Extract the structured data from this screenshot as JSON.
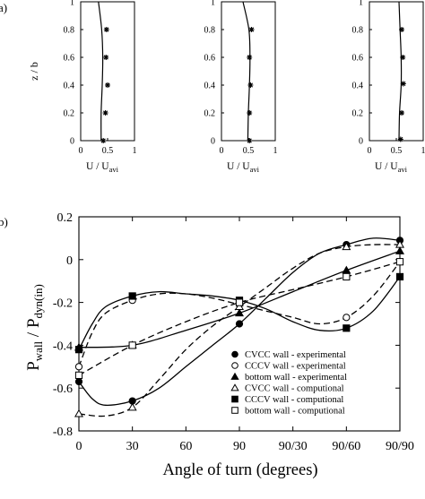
{
  "panels": {
    "a_label": "a)",
    "b_label": "b)"
  },
  "chart_data": [
    {
      "type": "line",
      "panel": "a-1",
      "xlabel": "U / U",
      "xlabel_sub": "avi",
      "ylabel": "z / b",
      "xlim": [
        0,
        1
      ],
      "ylim": [
        0,
        1
      ],
      "xticks": [
        "0",
        "0.5",
        "1"
      ],
      "yticks": [
        "0",
        "0.2",
        "0.4",
        "0.6",
        "0.8",
        "1"
      ],
      "grid": false,
      "points": [
        {
          "x": 0.42,
          "y": 0.0
        },
        {
          "x": 0.46,
          "y": 0.2
        },
        {
          "x": 0.5,
          "y": 0.4
        },
        {
          "x": 0.47,
          "y": 0.6
        },
        {
          "x": 0.48,
          "y": 0.8
        }
      ],
      "curve": [
        {
          "x": 0.38,
          "y": 0.0
        },
        {
          "x": 0.38,
          "y": 0.2
        },
        {
          "x": 0.4,
          "y": 0.4
        },
        {
          "x": 0.41,
          "y": 0.6
        },
        {
          "x": 0.39,
          "y": 0.8
        },
        {
          "x": 0.33,
          "y": 1.0
        }
      ]
    },
    {
      "type": "line",
      "panel": "a-2",
      "xlabel": "U / U",
      "xlabel_sub": "avi",
      "ylabel": "",
      "xlim": [
        0,
        1
      ],
      "ylim": [
        0,
        1
      ],
      "xticks": [
        "0",
        "0.5",
        "1"
      ],
      "yticks": [
        "0",
        "0.2",
        "0.4",
        "0.6",
        "0.8",
        "1"
      ],
      "grid": false,
      "points": [
        {
          "x": 0.52,
          "y": 0.0
        },
        {
          "x": 0.52,
          "y": 0.2
        },
        {
          "x": 0.54,
          "y": 0.4
        },
        {
          "x": 0.52,
          "y": 0.6
        },
        {
          "x": 0.56,
          "y": 0.8
        }
      ],
      "curve": [
        {
          "x": 0.49,
          "y": 0.0
        },
        {
          "x": 0.5,
          "y": 0.2
        },
        {
          "x": 0.52,
          "y": 0.4
        },
        {
          "x": 0.53,
          "y": 0.6
        },
        {
          "x": 0.51,
          "y": 0.8
        },
        {
          "x": 0.4,
          "y": 1.0
        }
      ]
    },
    {
      "type": "line",
      "panel": "a-3",
      "xlabel": "U / U",
      "xlabel_sub": "avi",
      "ylabel": "",
      "xlim": [
        0,
        1
      ],
      "ylim": [
        0,
        1
      ],
      "xticks": [
        "0",
        "0.5",
        "1"
      ],
      "yticks": [
        "0",
        "0.2",
        "0.4",
        "0.6",
        "0.8",
        "1"
      ],
      "grid": false,
      "points": [
        {
          "x": 0.58,
          "y": 0.01
        },
        {
          "x": 0.6,
          "y": 0.2
        },
        {
          "x": 0.63,
          "y": 0.41
        },
        {
          "x": 0.62,
          "y": 0.6
        },
        {
          "x": 0.6,
          "y": 0.8
        }
      ],
      "curve": [
        {
          "x": 0.55,
          "y": 0.0
        },
        {
          "x": 0.56,
          "y": 0.2
        },
        {
          "x": 0.59,
          "y": 0.4
        },
        {
          "x": 0.59,
          "y": 0.6
        },
        {
          "x": 0.57,
          "y": 0.8
        },
        {
          "x": 0.55,
          "y": 1.0
        }
      ]
    },
    {
      "type": "line",
      "panel": "b",
      "xlabel": "Angle of turn (degrees)",
      "ylabel": "P",
      "ylabel_sub1": "wall",
      "ylabel_mid": " / P",
      "ylabel_sub2": "dyn(in)",
      "categories": [
        "0",
        "30",
        "60",
        "90",
        "90/30",
        "90/60",
        "90/90"
      ],
      "ylim": [
        -0.8,
        0.2
      ],
      "yticks": [
        "-0.8",
        "-0.6",
        "-0.4",
        "-0.2",
        "0",
        "0.2"
      ],
      "grid": false,
      "legend_position": "bottom-right",
      "series": [
        {
          "name": "CVCC wall - experimental",
          "marker": "filled-circle",
          "line": "solid",
          "points": [
            {
              "x": 0,
              "y": -0.57
            },
            {
              "x": 1,
              "y": -0.66
            },
            {
              "x": 3,
              "y": -0.3
            },
            {
              "x": 5,
              "y": 0.07
            },
            {
              "x": 6,
              "y": 0.09
            }
          ],
          "curve": [
            {
              "x": 0,
              "y": -0.57
            },
            {
              "x": 0.25,
              "y": -0.65
            },
            {
              "x": 0.5,
              "y": -0.68
            },
            {
              "x": 1,
              "y": -0.66
            },
            {
              "x": 1.5,
              "y": -0.6
            },
            {
              "x": 2,
              "y": -0.5
            },
            {
              "x": 2.5,
              "y": -0.4
            },
            {
              "x": 3,
              "y": -0.3
            },
            {
              "x": 3.5,
              "y": -0.18
            },
            {
              "x": 4,
              "y": -0.06
            },
            {
              "x": 4.5,
              "y": 0.03
            },
            {
              "x": 5,
              "y": 0.07
            },
            {
              "x": 5.5,
              "y": 0.1
            },
            {
              "x": 6,
              "y": 0.09
            }
          ]
        },
        {
          "name": "CCCV wall - experimental",
          "marker": "open-circle",
          "line": "dashed",
          "points": [
            {
              "x": 0,
              "y": -0.5
            },
            {
              "x": 1,
              "y": -0.19
            },
            {
              "x": 3,
              "y": -0.21
            },
            {
              "x": 5,
              "y": -0.27
            },
            {
              "x": 6,
              "y": -0.01
            }
          ],
          "curve": [
            {
              "x": 0,
              "y": -0.5
            },
            {
              "x": 0.25,
              "y": -0.34
            },
            {
              "x": 0.5,
              "y": -0.25
            },
            {
              "x": 1,
              "y": -0.19
            },
            {
              "x": 1.5,
              "y": -0.16
            },
            {
              "x": 2,
              "y": -0.16
            },
            {
              "x": 2.5,
              "y": -0.18
            },
            {
              "x": 3,
              "y": -0.21
            },
            {
              "x": 3.5,
              "y": -0.24
            },
            {
              "x": 4,
              "y": -0.27
            },
            {
              "x": 4.5,
              "y": -0.3
            },
            {
              "x": 5,
              "y": -0.27
            },
            {
              "x": 5.5,
              "y": -0.17
            },
            {
              "x": 6,
              "y": -0.01
            }
          ]
        },
        {
          "name": "bottom wall - experimental",
          "marker": "filled-triangle",
          "line": "solid",
          "points": [
            {
              "x": 0,
              "y": -0.41
            },
            {
              "x": 1,
              "y": -0.4
            },
            {
              "x": 3,
              "y": -0.25
            },
            {
              "x": 5,
              "y": -0.05
            },
            {
              "x": 6,
              "y": 0.04
            }
          ],
          "curve": [
            {
              "x": 0,
              "y": -0.41
            },
            {
              "x": 1,
              "y": -0.4
            },
            {
              "x": 2,
              "y": -0.33
            },
            {
              "x": 3,
              "y": -0.25
            },
            {
              "x": 4,
              "y": -0.15
            },
            {
              "x": 5,
              "y": -0.05
            },
            {
              "x": 6,
              "y": 0.04
            }
          ]
        },
        {
          "name": "CVCC wall - computional",
          "marker": "open-triangle",
          "line": "dashed",
          "points": [
            {
              "x": 0,
              "y": -0.72
            },
            {
              "x": 1,
              "y": -0.69
            },
            {
              "x": 3,
              "y": -0.22
            },
            {
              "x": 5,
              "y": 0.06
            },
            {
              "x": 6,
              "y": 0.07
            }
          ],
          "curve": [
            {
              "x": 0,
              "y": -0.72
            },
            {
              "x": 0.5,
              "y": -0.73
            },
            {
              "x": 1,
              "y": -0.69
            },
            {
              "x": 1.5,
              "y": -0.56
            },
            {
              "x": 2,
              "y": -0.42
            },
            {
              "x": 2.5,
              "y": -0.31
            },
            {
              "x": 3,
              "y": -0.22
            },
            {
              "x": 3.5,
              "y": -0.13
            },
            {
              "x": 4,
              "y": -0.04
            },
            {
              "x": 4.5,
              "y": 0.03
            },
            {
              "x": 5,
              "y": 0.06
            },
            {
              "x": 5.5,
              "y": 0.07
            },
            {
              "x": 6,
              "y": 0.07
            }
          ]
        },
        {
          "name": "CCCV wall - computional",
          "marker": "filled-square",
          "line": "solid",
          "points": [
            {
              "x": 0,
              "y": -0.42
            },
            {
              "x": 1,
              "y": -0.17
            },
            {
              "x": 3,
              "y": -0.19
            },
            {
              "x": 5,
              "y": -0.32
            },
            {
              "x": 6,
              "y": -0.08
            }
          ],
          "curve": [
            {
              "x": 0,
              "y": -0.42
            },
            {
              "x": 0.25,
              "y": -0.3
            },
            {
              "x": 0.5,
              "y": -0.22
            },
            {
              "x": 1,
              "y": -0.17
            },
            {
              "x": 1.5,
              "y": -0.15
            },
            {
              "x": 2,
              "y": -0.16
            },
            {
              "x": 2.5,
              "y": -0.17
            },
            {
              "x": 3,
              "y": -0.19
            },
            {
              "x": 3.5,
              "y": -0.23
            },
            {
              "x": 4,
              "y": -0.29
            },
            {
              "x": 4.5,
              "y": -0.33
            },
            {
              "x": 5,
              "y": -0.32
            },
            {
              "x": 5.5,
              "y": -0.24
            },
            {
              "x": 6,
              "y": -0.08
            }
          ]
        },
        {
          "name": "bottom wall - computional",
          "marker": "open-square",
          "line": "dashed",
          "points": [
            {
              "x": 0,
              "y": -0.54
            },
            {
              "x": 1,
              "y": -0.4
            },
            {
              "x": 3,
              "y": -0.2
            },
            {
              "x": 5,
              "y": -0.08
            },
            {
              "x": 6,
              "y": -0.01
            }
          ],
          "curve": [
            {
              "x": 0,
              "y": -0.54
            },
            {
              "x": 1,
              "y": -0.4
            },
            {
              "x": 2,
              "y": -0.29
            },
            {
              "x": 3,
              "y": -0.2
            },
            {
              "x": 4,
              "y": -0.14
            },
            {
              "x": 5,
              "y": -0.08
            },
            {
              "x": 6,
              "y": -0.01
            }
          ]
        }
      ]
    }
  ]
}
